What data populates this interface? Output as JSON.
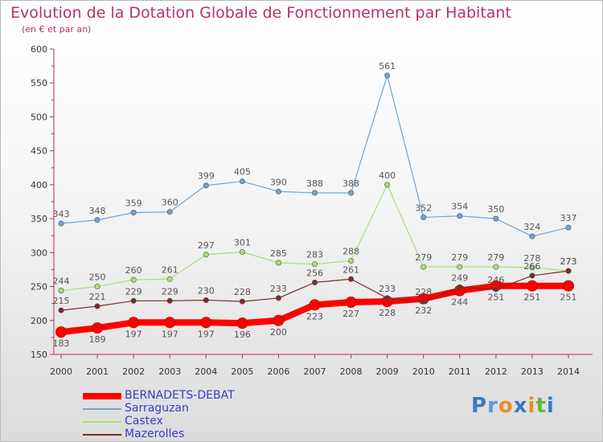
{
  "header": {
    "title": "Evolution de la Dotation Globale de Fonctionnement par Habitant",
    "subtitle": "(en € et par an)"
  },
  "logo": {
    "text": "Proxiti",
    "colors": [
      "#3a78c3",
      "#5a9be0",
      "#e98c2a",
      "#3a78c3",
      "#e98c2a",
      "#5fb63a",
      "#3a78c3"
    ]
  },
  "chart_data": {
    "type": "line",
    "title": "Evolution de la Dotation Globale de Fonctionnement par Habitant",
    "subtitle": "(en € et par an)",
    "x": [
      "2000",
      "2001",
      "2002",
      "2003",
      "2004",
      "2005",
      "2006",
      "2007",
      "2008",
      "2009",
      "2010",
      "2011",
      "2012",
      "2013",
      "2014"
    ],
    "ylim": [
      150,
      600
    ],
    "yticks": [
      150,
      200,
      250,
      300,
      350,
      400,
      450,
      500,
      550,
      600
    ],
    "grid": false,
    "legend": "bottom-left",
    "series": [
      {
        "name": "BERNADETS-DEBAT",
        "color": "#ff0000",
        "width": 8,
        "values": [
          183,
          189,
          197,
          197,
          197,
          196,
          200,
          223,
          227,
          228,
          232,
          244,
          251,
          251,
          251
        ]
      },
      {
        "name": "Sarraguzan",
        "color": "#6ea4d6",
        "width": 1.2,
        "values": [
          343,
          348,
          359,
          360,
          399,
          405,
          390,
          388,
          388,
          561,
          352,
          354,
          350,
          324,
          337
        ]
      },
      {
        "name": "Castex",
        "color": "#a6e07a",
        "width": 1.2,
        "values": [
          244,
          250,
          260,
          261,
          297,
          301,
          285,
          283,
          288,
          400,
          279,
          279,
          279,
          278,
          273
        ]
      },
      {
        "name": "Mazerolles",
        "color": "#7b2a2a",
        "width": 1.2,
        "values": [
          215,
          221,
          229,
          229,
          230,
          228,
          233,
          256,
          261,
          233,
          228,
          249,
          246,
          266,
          273
        ]
      }
    ]
  }
}
